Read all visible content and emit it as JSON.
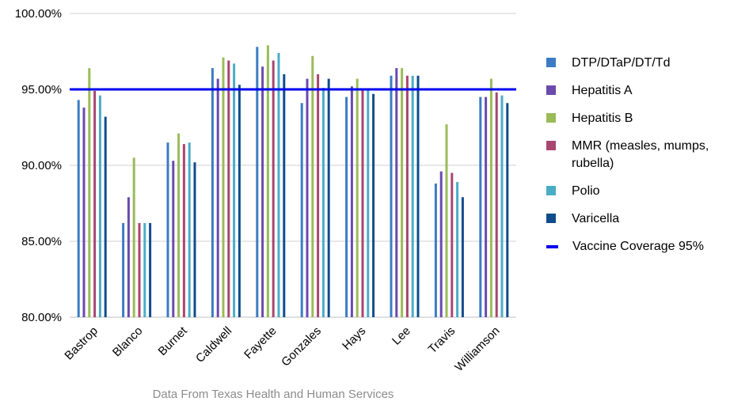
{
  "chart_data": {
    "type": "bar",
    "title": "",
    "xlabel": "",
    "ylabel": "",
    "ylim": [
      80,
      100
    ],
    "yticks": [
      "80.00%",
      "85.00%",
      "90.00%",
      "95.00%",
      "100.00%"
    ],
    "ytick_values": [
      80,
      85,
      90,
      95,
      100
    ],
    "grid": true,
    "legend_position": "right",
    "categories": [
      "Bastrop",
      "Blanco",
      "Burnet",
      "Caldwell",
      "Fayette",
      "Gonzales",
      "Hays",
      "Lee",
      "Travis",
      "Williamson"
    ],
    "series": [
      {
        "name": "DTP/DTaP/DT/Td",
        "color": "#3b7cc4",
        "values": [
          94.3,
          86.2,
          91.5,
          96.4,
          97.8,
          94.1,
          94.5,
          95.9,
          88.8,
          94.5
        ]
      },
      {
        "name": "Hepatitis A",
        "color": "#6a4aad",
        "values": [
          93.8,
          87.9,
          90.3,
          95.7,
          96.5,
          95.7,
          95.2,
          96.4,
          89.6,
          94.5
        ]
      },
      {
        "name": "Hepatitis B",
        "color": "#9bbb59",
        "values": [
          96.4,
          90.5,
          92.1,
          97.1,
          97.9,
          97.2,
          95.7,
          96.4,
          92.7,
          95.7
        ]
      },
      {
        "name": "MMR (measles, mumps, rubella)",
        "color": "#a8466f",
        "values": [
          94.9,
          86.2,
          91.4,
          96.9,
          96.9,
          96.0,
          95.0,
          95.9,
          89.5,
          94.8
        ]
      },
      {
        "name": "Polio",
        "color": "#4bacc6",
        "values": [
          94.6,
          86.2,
          91.5,
          96.7,
          97.4,
          95.1,
          95.0,
          95.9,
          88.9,
          94.6
        ]
      },
      {
        "name": "Varicella",
        "color": "#0f4c8c",
        "values": [
          93.2,
          86.2,
          90.2,
          95.3,
          96.0,
          95.7,
          94.7,
          95.9,
          87.9,
          94.1
        ]
      }
    ],
    "reference_line": {
      "name": "Vaccine Coverage 95%",
      "value": 95,
      "color": "#0000ee"
    },
    "source_note": "Data From Texas Health and Human Services"
  },
  "legend_items": [
    {
      "label": "DTP/DTaP/DT/Td",
      "color": "#3b7cc4",
      "kind": "box"
    },
    {
      "label": "Hepatitis A",
      "color": "#6a4aad",
      "kind": "box"
    },
    {
      "label": "Hepatitis B",
      "color": "#9bbb59",
      "kind": "box"
    },
    {
      "label": "MMR (measles, mumps,\nrubella)",
      "color": "#a8466f",
      "kind": "box"
    },
    {
      "label": "Polio",
      "color": "#4bacc6",
      "kind": "box"
    },
    {
      "label": "Varicella",
      "color": "#0f4c8c",
      "kind": "box"
    },
    {
      "label": "Vaccine Coverage 95%",
      "color": "#0000ee",
      "kind": "line"
    }
  ],
  "colors": {
    "grid": "#d0d0d0",
    "axis": "#bfbfbf",
    "source_text": "#8c8c8c"
  }
}
